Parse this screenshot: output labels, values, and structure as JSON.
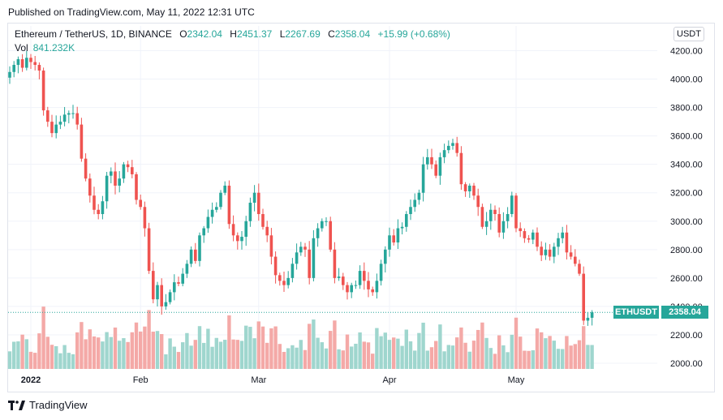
{
  "header": {
    "published": "Published on TradingView.com, May 11, 2022 12:31 UTC"
  },
  "legend": {
    "symbol": "Ethereum / TetherUS, 1D, BINANCE",
    "o_label": "O",
    "o": "2342.04",
    "h_label": "H",
    "h": "2451.37",
    "l_label": "L",
    "l": "2267.69",
    "c_label": "C",
    "c": "2358.04",
    "change": "+15.99 (+0.68%)",
    "vol_label": "Vol",
    "vol": "841.232K"
  },
  "currency_button": "USDT",
  "price_tag": {
    "symbol": "ETHUSDT",
    "price": "2358.04"
  },
  "footer": {
    "brand": "TradingView"
  },
  "colors": {
    "up": "#26a69a",
    "down": "#ef5350",
    "up_vol": "#9fd6ce",
    "down_vol": "#f4a9a7",
    "grid": "#f0f3fa"
  },
  "chart_data": {
    "type": "candlestick",
    "y_axis_ticks": [
      2000,
      2200,
      2400,
      2600,
      2800,
      3000,
      3200,
      3400,
      3600,
      3800,
      4000,
      4200
    ],
    "y_axis_labels": [
      "2000.00",
      "2200.00",
      "2400.00",
      "2600.00",
      "2800.00",
      "3000.00",
      "3200.00",
      "3400.00",
      "3600.00",
      "3800.00",
      "4000.00",
      "4200.00"
    ],
    "ylim": [
      1960,
      4260
    ],
    "x_axis_labels": [
      {
        "label": "2022",
        "day": 5
      },
      {
        "label": "Feb",
        "day": 31
      },
      {
        "label": "Mar",
        "day": 59
      },
      {
        "label": "Apr",
        "day": 90
      },
      {
        "label": "May",
        "day": 120
      }
    ],
    "grid": true,
    "last_price": 2358.04,
    "closes": [
      4050,
      4100,
      4140,
      4080,
      4150,
      4120,
      4100,
      4060,
      3780,
      3700,
      3620,
      3680,
      3700,
      3750,
      3760,
      3760,
      3680,
      3440,
      3300,
      3180,
      3080,
      3050,
      3140,
      3320,
      3350,
      3250,
      3300,
      3400,
      3380,
      3330,
      3150,
      3100,
      2950,
      2650,
      2450,
      2550,
      2400,
      2430,
      2500,
      2570,
      2560,
      2630,
      2700,
      2800,
      2720,
      2900,
      2950,
      3030,
      3080,
      3100,
      3200,
      3250,
      2980,
      2900,
      2860,
      2890,
      3000,
      3130,
      3200,
      3050,
      2960,
      2900,
      2750,
      2620,
      2580,
      2550,
      2600,
      2700,
      2780,
      2820,
      2800,
      2600,
      2880,
      2950,
      3000,
      3000,
      2800,
      2600,
      2610,
      2550,
      2500,
      2550,
      2550,
      2650,
      2580,
      2520,
      2500,
      2580,
      2700,
      2800,
      2900,
      2850,
      2950,
      2960,
      3050,
      3100,
      3150,
      3200,
      3400,
      3450,
      3400,
      3320,
      3450,
      3500,
      3530,
      3550,
      3480,
      3260,
      3210,
      3250,
      3180,
      3100,
      2960,
      3000,
      3080,
      3050,
      2920,
      3000,
      3050,
      3180,
      2950,
      2930,
      2880,
      2870,
      2920,
      2820,
      2760,
      2800,
      2750,
      2820,
      2880,
      2920,
      2780,
      2750,
      2700,
      2630,
      2300,
      2320,
      2358
    ]
  }
}
